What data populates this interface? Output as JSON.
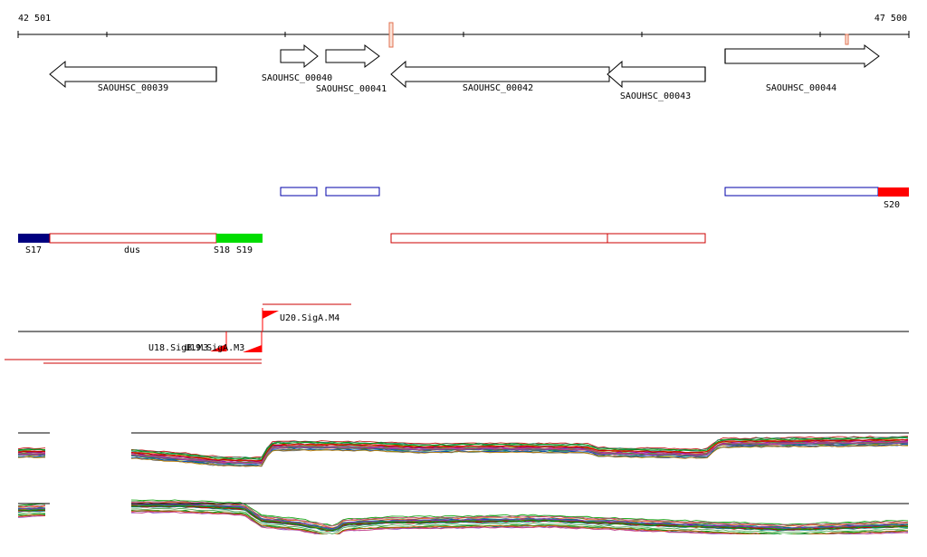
{
  "ruler": {
    "start_label": "42 501",
    "end_label": "47 500"
  },
  "genes": [
    {
      "id": "SAOUHSC_00039",
      "label": "SAOUHSC_00039",
      "strand": "-"
    },
    {
      "id": "SAOUHSC_00040",
      "label": "SAOUHSC_00040",
      "strand": "+"
    },
    {
      "id": "SAOUHSC_00041",
      "label": "SAOUHSC_00041",
      "strand": "+"
    },
    {
      "id": "SAOUHSC_00042",
      "label": "SAOUHSC_00042",
      "strand": "-"
    },
    {
      "id": "SAOUHSC_00043",
      "label": "SAOUHSC_00043",
      "strand": "-"
    },
    {
      "id": "SAOUHSC_00044",
      "label": "SAOUHSC_00044",
      "strand": "+"
    }
  ],
  "segments": [
    {
      "label": "S17",
      "color": "#000080"
    },
    {
      "label": "dus",
      "color": "#ff0000"
    },
    {
      "label": "S18",
      "color": "#00dd00"
    },
    {
      "label": "S19",
      "color": "#00dd00"
    },
    {
      "label": "S20",
      "color": "#ff0000"
    }
  ],
  "promoters": [
    {
      "label": "U20.SigA.M4"
    },
    {
      "label": "U18.SigB.M3"
    },
    {
      "label": "U19.SigA.M3"
    }
  ],
  "colors": {
    "feature_outline": "#0000aa",
    "segment_outline": "#cc0000",
    "promoter": "#ff0000",
    "marker": "#e07050"
  }
}
